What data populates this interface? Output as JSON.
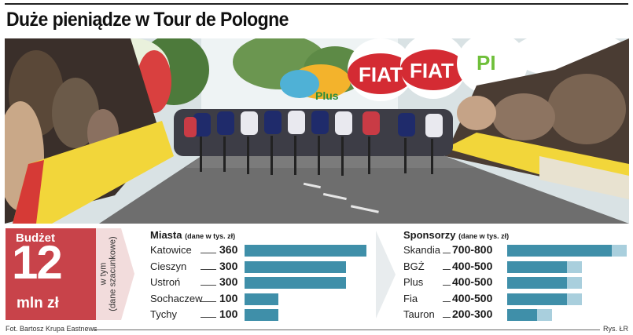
{
  "headline": "Duże pieniądze w Tour de Pologne",
  "photo": {
    "banners": [
      "FIAT",
      "FIAT",
      "Plus",
      "PI"
    ],
    "colors": {
      "sky": "#e8eef0",
      "road": "#6e6e6e",
      "barrier": "#f2d63a"
    }
  },
  "budget": {
    "title": "Budżet",
    "value": "12",
    "unit": "mln zł",
    "note": "w tym\n(dane szacunkowe)",
    "color": "#c8434a"
  },
  "cities": {
    "title": "Miasta",
    "subtitle": "(dane w tys. zł)",
    "max": 360,
    "rows": [
      {
        "name": "Katowice",
        "value": "360",
        "amount": 360
      },
      {
        "name": "Cieszyn",
        "value": "300",
        "amount": 300
      },
      {
        "name": "Ustroń",
        "value": "300",
        "amount": 300
      },
      {
        "name": "Sochaczew",
        "value": "100",
        "amount": 100
      },
      {
        "name": "Tychy",
        "value": "100",
        "amount": 100
      }
    ]
  },
  "sponsors": {
    "title": "Sponsorzy",
    "subtitle": "(dane w tys. zł)",
    "max": 800,
    "rows": [
      {
        "name": "Skandia",
        "value": "700-800",
        "low": 700,
        "high": 800
      },
      {
        "name": "BGŻ",
        "value": "400-500",
        "low": 400,
        "high": 500
      },
      {
        "name": "Plus",
        "value": "400-500",
        "low": 400,
        "high": 500
      },
      {
        "name": "Fia",
        "value": "400-500",
        "low": 400,
        "high": 500
      },
      {
        "name": "Tauron",
        "value": "200-300",
        "low": 200,
        "high": 300
      }
    ]
  },
  "credits": {
    "photo": "Fot. Bartosz Krupa Eastnews",
    "graphic": "Rys. ŁR"
  }
}
